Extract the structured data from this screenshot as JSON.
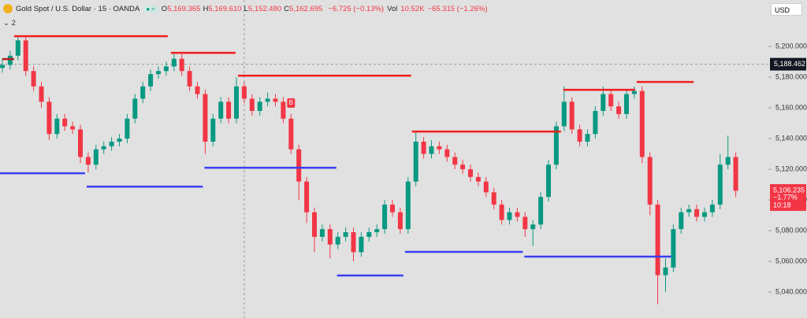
{
  "header": {
    "symbol": "Gold Spot / U.S. Dollar · 15 · OANDA",
    "ohlc": [
      {
        "label": "O",
        "value": "5,169.365"
      },
      {
        "label": "H",
        "value": "5,169.610"
      },
      {
        "label": "L",
        "value": "5,152.480"
      },
      {
        "label": "C",
        "value": "5,162.695"
      }
    ],
    "change": "−6.725 (−0.13%)",
    "vol_label": "Vol",
    "vol": "10.52K",
    "vol_change": "−65.315 (−1.26%)",
    "indicators": "2",
    "currency": "USD"
  },
  "chart_data": {
    "type": "candlestick",
    "up_color": "#089981",
    "down_color": "#f23645",
    "ylim": [
      5023.1,
      5230.3
    ],
    "yticks": [
      {
        "value": 5040,
        "label": "5,040.000"
      },
      {
        "value": 5060,
        "label": "5,060.000"
      },
      {
        "value": 5080,
        "label": "5,080.000"
      },
      {
        "value": 5100,
        "label": "5,100.000"
      },
      {
        "value": 5120,
        "label": "5,120.000"
      },
      {
        "value": 5140,
        "label": "5,140.000"
      },
      {
        "value": 5160,
        "label": "5,160.000"
      },
      {
        "value": 5180,
        "label": "5,180.000"
      },
      {
        "value": 5200,
        "label": "5,200.000"
      }
    ],
    "ohlc": [
      [
        5186,
        5192,
        5183,
        5188
      ],
      [
        5188,
        5197,
        5185,
        5194
      ],
      [
        5194,
        5207,
        5191,
        5204
      ],
      [
        5204,
        5206,
        5181,
        5184
      ],
      [
        5184,
        5187,
        5171,
        5174
      ],
      [
        5174,
        5177,
        5160,
        5164
      ],
      [
        5164,
        5167,
        5139,
        5143
      ],
      [
        5143,
        5156,
        5140,
        5153
      ],
      [
        5153,
        5156,
        5145,
        5148
      ],
      [
        5148,
        5151,
        5143,
        5146
      ],
      [
        5146,
        5149,
        5124,
        5128
      ],
      [
        5128,
        5131,
        5118,
        5123
      ],
      [
        5123,
        5136,
        5120,
        5133
      ],
      [
        5133,
        5138,
        5130,
        5135
      ],
      [
        5135,
        5141,
        5132,
        5138
      ],
      [
        5138,
        5143,
        5135,
        5140
      ],
      [
        5140,
        5156,
        5137,
        5153
      ],
      [
        5153,
        5169,
        5150,
        5166
      ],
      [
        5166,
        5177,
        5163,
        5174
      ],
      [
        5174,
        5185,
        5171,
        5182
      ],
      [
        5182,
        5187,
        5179,
        5184
      ],
      [
        5184,
        5190,
        5181,
        5187
      ],
      [
        5187,
        5196,
        5184,
        5192
      ],
      [
        5192,
        5195,
        5181,
        5184
      ],
      [
        5184,
        5187,
        5171,
        5174
      ],
      [
        5174,
        5177,
        5166,
        5169
      ],
      [
        5169,
        5172,
        5130,
        5138
      ],
      [
        5138,
        5156,
        5135,
        5153
      ],
      [
        5153,
        5167,
        5150,
        5164
      ],
      [
        5164,
        5167,
        5150,
        5153
      ],
      [
        5153,
        5180,
        5150,
        5174
      ],
      [
        5174,
        5177,
        5163,
        5166
      ],
      [
        5166,
        5169,
        5155,
        5158
      ],
      [
        5158,
        5167,
        5155,
        5164
      ],
      [
        5164,
        5170,
        5161,
        5166
      ],
      [
        5166,
        5169,
        5161,
        5164
      ],
      [
        5164,
        5167,
        5150,
        5153
      ],
      [
        5153,
        5156,
        5130,
        5133
      ],
      [
        5133,
        5136,
        5100,
        5112
      ],
      [
        5112,
        5115,
        5085,
        5092
      ],
      [
        5092,
        5095,
        5066,
        5076
      ],
      [
        5076,
        5084,
        5073,
        5081
      ],
      [
        5081,
        5084,
        5062,
        5071
      ],
      [
        5071,
        5079,
        5068,
        5076
      ],
      [
        5076,
        5082,
        5073,
        5079
      ],
      [
        5079,
        5082,
        5060,
        5066
      ],
      [
        5066,
        5079,
        5063,
        5076
      ],
      [
        5076,
        5082,
        5073,
        5079
      ],
      [
        5079,
        5084,
        5076,
        5081
      ],
      [
        5081,
        5100,
        5078,
        5097
      ],
      [
        5097,
        5100,
        5089,
        5092
      ],
      [
        5092,
        5095,
        5078,
        5081
      ],
      [
        5081,
        5115,
        5078,
        5112
      ],
      [
        5112,
        5145,
        5109,
        5138
      ],
      [
        5138,
        5141,
        5127,
        5130
      ],
      [
        5130,
        5139,
        5127,
        5135
      ],
      [
        5135,
        5138,
        5130,
        5133
      ],
      [
        5133,
        5136,
        5125,
        5128
      ],
      [
        5128,
        5131,
        5120,
        5123
      ],
      [
        5123,
        5126,
        5117,
        5120
      ],
      [
        5120,
        5123,
        5112,
        5115
      ],
      [
        5115,
        5118,
        5109,
        5112
      ],
      [
        5112,
        5115,
        5102,
        5105
      ],
      [
        5105,
        5108,
        5094,
        5097
      ],
      [
        5097,
        5100,
        5084,
        5087
      ],
      [
        5087,
        5095,
        5084,
        5092
      ],
      [
        5092,
        5095,
        5086,
        5089
      ],
      [
        5089,
        5092,
        5076,
        5081
      ],
      [
        5081,
        5087,
        5070,
        5084
      ],
      [
        5084,
        5105,
        5081,
        5102
      ],
      [
        5102,
        5126,
        5099,
        5123
      ],
      [
        5123,
        5151,
        5120,
        5148
      ],
      [
        5148,
        5174,
        5145,
        5164
      ],
      [
        5164,
        5167,
        5143,
        5146
      ],
      [
        5146,
        5149,
        5135,
        5138
      ],
      [
        5138,
        5146,
        5135,
        5143
      ],
      [
        5143,
        5161,
        5140,
        5158
      ],
      [
        5158,
        5174,
        5155,
        5169
      ],
      [
        5169,
        5172,
        5158,
        5161
      ],
      [
        5161,
        5164,
        5153,
        5156
      ],
      [
        5156,
        5172,
        5153,
        5169
      ],
      [
        5169,
        5174,
        5166,
        5171
      ],
      [
        5171,
        5174,
        5124,
        5128
      ],
      [
        5128,
        5131,
        5090,
        5097
      ],
      [
        5097,
        5100,
        5032,
        5051
      ],
      [
        5051,
        5062,
        5040,
        5056
      ],
      [
        5056,
        5084,
        5053,
        5081
      ],
      [
        5081,
        5095,
        5078,
        5092
      ],
      [
        5092,
        5097,
        5089,
        5094
      ],
      [
        5094,
        5097,
        5086,
        5089
      ],
      [
        5089,
        5095,
        5086,
        5092
      ],
      [
        5092,
        5100,
        5089,
        5097
      ],
      [
        5097,
        5130,
        5094,
        5123
      ],
      [
        5123,
        5142,
        5120,
        5128
      ],
      [
        5128,
        5131,
        5102,
        5106
      ]
    ],
    "levels": [
      {
        "value": 5191.8,
        "from": 0,
        "to": 1.5,
        "color": "#b71c1c"
      },
      {
        "value": 5206.7,
        "from": 1.5,
        "to": 21.2,
        "color": "#f21d1d"
      },
      {
        "value": 5195.9,
        "from": 21.6,
        "to": 29.9,
        "color": "#f21d1d"
      },
      {
        "value": 5181.0,
        "from": 30.2,
        "to": 52.4,
        "color": "#f21d1d"
      },
      {
        "value": 5144.6,
        "from": 52.5,
        "to": 71.6,
        "color": "#f21d1d"
      },
      {
        "value": 5171.8,
        "from": 71.9,
        "to": 81.1,
        "color": "#f21d1d"
      },
      {
        "value": 5176.9,
        "from": 81.3,
        "to": 88.6,
        "color": "#f21d1d"
      },
      {
        "value": 5117.4,
        "from": -0.3,
        "to": 10.6,
        "color": "#3a3ff0"
      },
      {
        "value": 5108.7,
        "from": 10.8,
        "to": 25.7,
        "color": "#3a3ff0"
      },
      {
        "value": 5121.0,
        "from": 25.9,
        "to": 42.8,
        "color": "#3a3ff0"
      },
      {
        "value": 5050.8,
        "from": 42.9,
        "to": 51.4,
        "color": "#3a3ff0"
      },
      {
        "value": 5066.2,
        "from": 51.6,
        "to": 66.7,
        "color": "#3a3ff0"
      },
      {
        "value": 5063.1,
        "from": 66.9,
        "to": 85.7,
        "color": "#3a3ff0"
      }
    ],
    "crosshair": {
      "index": 31,
      "value": 5188.462,
      "label": "5,188.462"
    },
    "last_price": {
      "value": 5106.235,
      "label": "5,106.235",
      "change": "−1.77%",
      "countdown": "10:18"
    },
    "markers": [
      {
        "index": 37,
        "text": "B"
      }
    ]
  }
}
